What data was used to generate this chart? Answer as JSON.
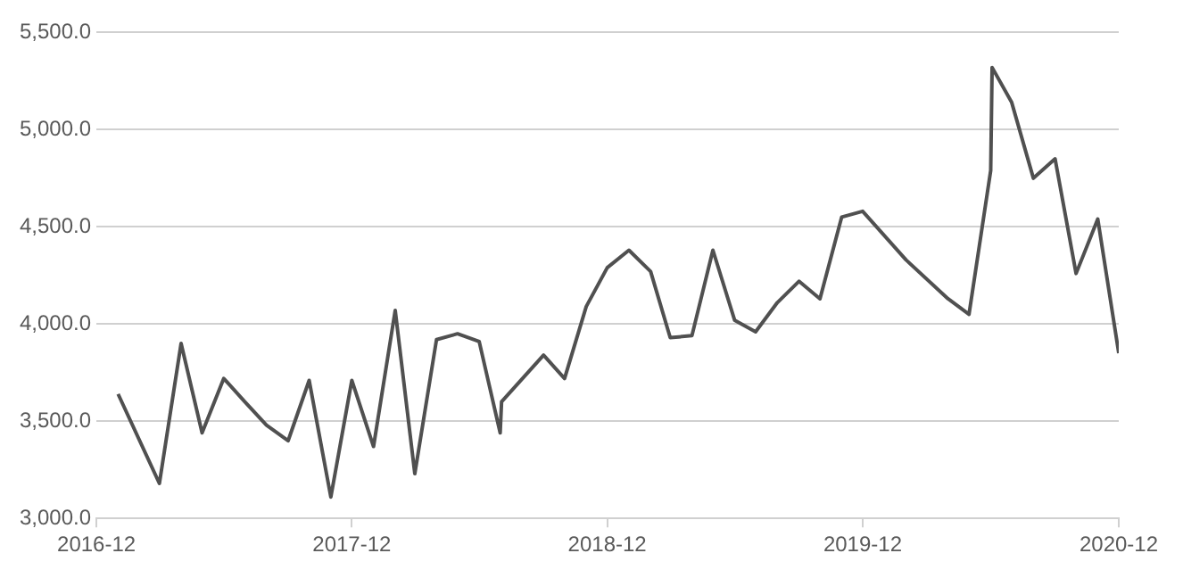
{
  "chart_data": {
    "type": "line",
    "x": [
      "2017-01",
      "2017-03",
      "2017-04",
      "2017-05",
      "2017-06",
      "2017-07",
      "2017-08",
      "2017-09",
      "2017-10",
      "2017-11",
      "2017-12",
      "2018-01",
      "2018-02",
      "2018-03",
      "2018-04",
      "2018-05",
      "2018-06",
      "2018-07",
      "2018-07-03",
      "2018-09",
      "2018-10",
      "2018-11",
      "2018-12",
      "2019-01",
      "2019-02",
      "2019-03",
      "2019-04",
      "2019-05",
      "2019-06",
      "2019-07",
      "2019-08",
      "2019-09",
      "2019-10",
      "2019-11",
      "2019-12",
      "2020-02",
      "2020-04",
      "2020-05",
      "2020-06",
      "2020-06-03",
      "2020-07",
      "2020-08",
      "2020-09",
      "2020-10",
      "2020-11",
      "2020-12"
    ],
    "series": [
      {
        "color": "#505050",
        "values": [
          3640,
          3180,
          3900,
          3440,
          3720,
          3600,
          3480,
          3400,
          3710,
          3110,
          3710,
          3370,
          4070,
          3230,
          3920,
          3950,
          3910,
          3440,
          3600,
          3840,
          3720,
          4090,
          4290,
          4380,
          4270,
          3930,
          3940,
          4380,
          4020,
          3960,
          4110,
          4220,
          4130,
          4550,
          4580,
          4330,
          4130,
          4050,
          4790,
          5320,
          5140,
          4750,
          4850,
          4260,
          4540,
          3850
        ]
      }
    ],
    "xlim": [
      "2016-12",
      "2020-12"
    ],
    "xticks": [
      {
        "value": "2016-12",
        "label": "2016-12"
      },
      {
        "value": "2017-12",
        "label": "2017-12"
      },
      {
        "value": "2018-12",
        "label": "2018-12"
      },
      {
        "value": "2019-12",
        "label": "2019-12"
      },
      {
        "value": "2020-12",
        "label": "2020-12"
      }
    ],
    "ylim": [
      3000,
      5500
    ],
    "yticks": [
      {
        "value": 3000,
        "label": "3,000.0"
      },
      {
        "value": 3500,
        "label": "3,500.0"
      },
      {
        "value": 4000,
        "label": "4,000.0"
      },
      {
        "value": 4500,
        "label": "4,500.0"
      },
      {
        "value": 5000,
        "label": "5,000.0"
      },
      {
        "value": 5500,
        "label": "5,500.0"
      }
    ],
    "grid": "y",
    "marker": "none",
    "line_style": "solid"
  }
}
